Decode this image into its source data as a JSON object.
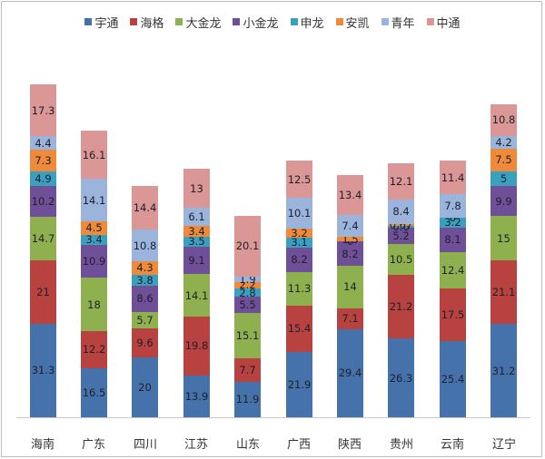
{
  "chart_data": {
    "type": "bar",
    "stacked": true,
    "title": "",
    "xlabel": "",
    "ylabel": "",
    "grid": false,
    "legend_position": "top",
    "categories": [
      "海南",
      "广东",
      "四川",
      "江苏",
      "山东",
      "广西",
      "陕西",
      "贵州",
      "云南",
      "辽宁"
    ],
    "series": [
      {
        "name": "宇通",
        "color": "#4672ab",
        "values": [
          31.3,
          16.5,
          20,
          13.9,
          11.9,
          21.9,
          29.4,
          26.3,
          25.4,
          31.2
        ]
      },
      {
        "name": "海格",
        "color": "#b8423f",
        "values": [
          21,
          12.2,
          9.6,
          19.8,
          7.7,
          15.4,
          7.1,
          21.2,
          17.5,
          21.1
        ]
      },
      {
        "name": "大金龙",
        "color": "#8fb04f",
        "values": [
          14.7,
          18,
          5.7,
          14.1,
          15.1,
          11.3,
          14,
          10.5,
          12.4,
          15
        ]
      },
      {
        "name": "小金龙",
        "color": "#6e4f98",
        "values": [
          10.2,
          10.9,
          8.6,
          9.1,
          5.5,
          8.2,
          8.2,
          5.2,
          8.1,
          9.9
        ]
      },
      {
        "name": "申龙",
        "color": "#3aa0bf",
        "values": [
          4.9,
          3.4,
          3.8,
          3.5,
          2.8,
          3.1,
          0,
          0.6,
          3.2,
          5
        ]
      },
      {
        "name": "安凯",
        "color": "#ee8a3a",
        "values": [
          7.3,
          4.5,
          4.3,
          3.4,
          2.2,
          3.2,
          1.5,
          0.67,
          0,
          7.5
        ]
      },
      {
        "name": "青年",
        "color": "#9ab4dc",
        "values": [
          4.4,
          14.1,
          10.8,
          6.1,
          1.9,
          10.1,
          7.4,
          8.4,
          7.8,
          4.2
        ]
      },
      {
        "name": "中通",
        "color": "#da9796",
        "values": [
          17.3,
          16.1,
          14.4,
          13,
          20.1,
          12.5,
          13.4,
          12.1,
          11.4,
          10.8
        ]
      }
    ]
  },
  "legend": {
    "items": [
      "宇通",
      "海格",
      "大金龙",
      "小金龙",
      "申龙",
      "安凯",
      "青年",
      "中通"
    ]
  },
  "x_axis": {
    "labels": [
      "海南",
      "广东",
      "四川",
      "江苏",
      "山东",
      "广西",
      "陕西",
      "贵州",
      "云南",
      "辽宁"
    ]
  }
}
